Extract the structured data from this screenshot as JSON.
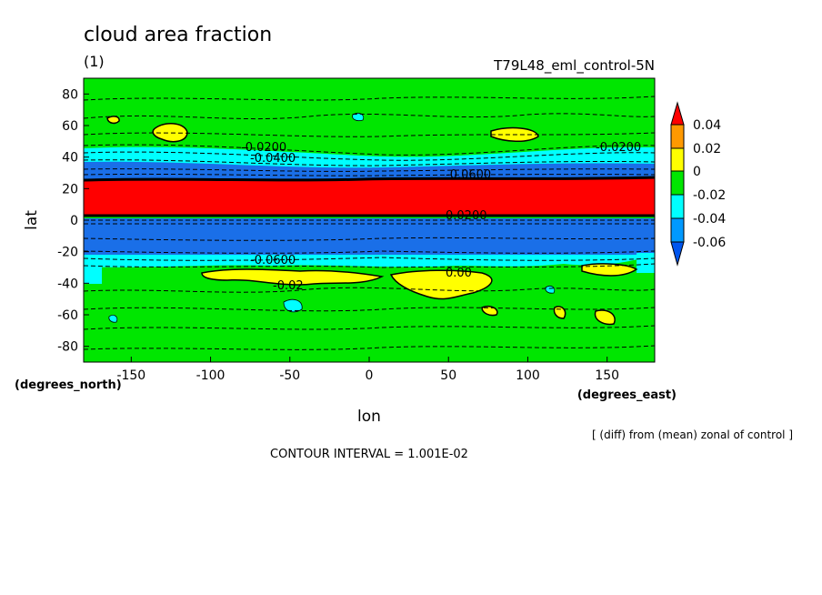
{
  "chart_data": {
    "type": "contour",
    "title": "cloud area fraction",
    "subtitle": "(1)",
    "run_label": "T79L48_eml_control-5N",
    "xlabel": "lon",
    "ylabel": "lat",
    "x_units": "(degrees_east)",
    "y_units": "(degrees_north)",
    "xlim": [
      -180,
      180
    ],
    "ylim": [
      -90,
      90
    ],
    "x_ticks": [
      -150,
      -100,
      -50,
      0,
      50,
      100,
      150
    ],
    "y_ticks": [
      80,
      60,
      40,
      20,
      0,
      -20,
      -40,
      -60,
      -80
    ],
    "note": "[ (diff) from (mean) zonal of control ]",
    "contour_interval": "CONTOUR INTERVAL = 1.001E-02",
    "colorbar": {
      "labels": [
        "0.04",
        "0.02",
        "0",
        "-0.02",
        "-0.04",
        "-0.06"
      ],
      "colors": [
        "#ff0000",
        "#ff9900",
        "#ffff00",
        "#00e600",
        "#00ffff",
        "#0099ff",
        "#0055ee"
      ]
    },
    "bands": [
      {
        "lat_range": [
          0,
          27
        ],
        "level": ">0.04",
        "color": "#ff0000"
      },
      {
        "lat_range": [
          -25,
          0
        ],
        "level": "<-0.06",
        "color": "#1a6fe8"
      },
      {
        "lat_range": [
          27,
          33
        ],
        "level": "-0.06",
        "color": "#1a6fe8"
      },
      {
        "lat_range": [
          33,
          40
        ],
        "level": "-0.04",
        "color": "#00ffff"
      },
      {
        "lat_range": [
          -31,
          -25
        ],
        "level": "-0.04",
        "color": "#00ffff"
      }
    ],
    "contour_labels": [
      "-0.0200",
      "-0.0400",
      "-0.0600",
      "0.0200",
      "0.00",
      "-0.0600",
      "-0.0200",
      "-0.02"
    ]
  }
}
